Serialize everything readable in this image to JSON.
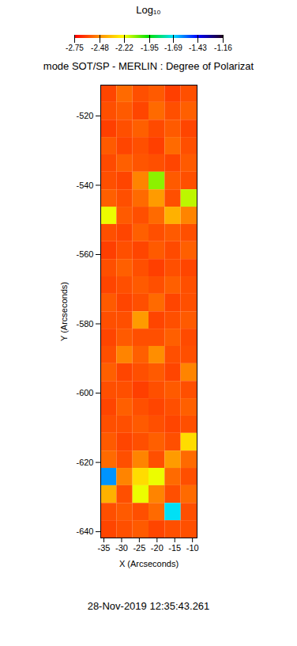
{
  "chart_data": {
    "type": "heatmap",
    "title": "mode SOT/SP - MERLIN : Degree of Polarizat",
    "x_label": "X (Arcseconds)",
    "y_label": "Y (Arcseconds)",
    "caption": "28-Nov-2019 12:35:43.261",
    "xlim": [
      -35.9,
      -8.7
    ],
    "xticks": [
      -35,
      -30,
      -25,
      -20,
      -15,
      -10
    ],
    "ylim": [
      -641.8,
      -511.1
    ],
    "yticks": [
      -520,
      -540,
      -560,
      -580,
      -600,
      -620,
      -640
    ],
    "cells": {
      "x_edges": [
        -35.9,
        -31.37,
        -26.83,
        -22.3,
        -17.77,
        -13.23,
        -8.7
      ],
      "y_edges": [
        -511.1,
        -516.1,
        -521.2,
        -526.2,
        -531.2,
        -536.2,
        -541.3,
        -546.3,
        -551.3,
        -556.3,
        -561.4,
        -566.4,
        -571.4,
        -576.5,
        -581.5,
        -586.5,
        -591.5,
        -596.6,
        -601.6,
        -606.6,
        -611.6,
        -616.7,
        -621.7,
        -626.7,
        -631.8,
        -636.8,
        -641.8
      ],
      "values": [
        [
          -2.62,
          -2.55,
          -2.6,
          -2.58,
          -2.63,
          -2.6
        ],
        [
          -2.6,
          -2.58,
          -2.62,
          -2.55,
          -2.6,
          -2.57
        ],
        [
          -2.63,
          -2.6,
          -2.57,
          -2.61,
          -2.58,
          -2.62
        ],
        [
          -2.58,
          -2.62,
          -2.6,
          -2.63,
          -2.55,
          -2.6
        ],
        [
          -2.61,
          -2.57,
          -2.59,
          -2.6,
          -2.62,
          -2.58
        ],
        [
          -2.6,
          -2.62,
          -2.5,
          -2.1,
          -2.58,
          -2.6
        ],
        [
          -2.57,
          -2.6,
          -2.55,
          -2.45,
          -2.6,
          -2.15
        ],
        [
          -2.2,
          -2.58,
          -2.6,
          -2.55,
          -2.4,
          -2.5
        ],
        [
          -2.6,
          -2.62,
          -2.57,
          -2.6,
          -2.58,
          -2.6
        ],
        [
          -2.63,
          -2.6,
          -2.62,
          -2.58,
          -2.61,
          -2.57
        ],
        [
          -2.6,
          -2.57,
          -2.6,
          -2.63,
          -2.6,
          -2.62
        ],
        [
          -2.62,
          -2.6,
          -2.58,
          -2.6,
          -2.57,
          -2.6
        ],
        [
          -2.58,
          -2.62,
          -2.6,
          -2.55,
          -2.62,
          -2.6
        ],
        [
          -2.6,
          -2.6,
          -2.45,
          -2.62,
          -2.6,
          -2.58
        ],
        [
          -2.62,
          -2.58,
          -2.6,
          -2.6,
          -2.57,
          -2.61
        ],
        [
          -2.6,
          -2.5,
          -2.57,
          -2.48,
          -2.6,
          -2.6
        ],
        [
          -2.57,
          -2.62,
          -2.6,
          -2.58,
          -2.62,
          -2.5
        ],
        [
          -2.6,
          -2.6,
          -2.63,
          -2.6,
          -2.58,
          -2.6
        ],
        [
          -2.62,
          -2.57,
          -2.6,
          -2.62,
          -2.6,
          -2.57
        ],
        [
          -2.6,
          -2.6,
          -2.58,
          -2.6,
          -2.62,
          -2.6
        ],
        [
          -2.58,
          -2.62,
          -2.6,
          -2.57,
          -2.6,
          -2.3
        ],
        [
          -2.55,
          -2.6,
          -2.5,
          -2.6,
          -2.45,
          -2.55
        ],
        [
          -1.6,
          -2.5,
          -2.3,
          -2.2,
          -2.55,
          -2.6
        ],
        [
          -2.4,
          -2.6,
          -2.2,
          -2.5,
          -2.6,
          -2.55
        ],
        [
          -2.6,
          -2.58,
          -2.6,
          -2.55,
          -1.7,
          -2.6
        ],
        [
          -2.62,
          -2.6,
          -2.58,
          -2.62,
          -2.6,
          -2.6
        ]
      ]
    },
    "colorbar": {
      "label": "Log₁₀",
      "range": [
        -2.75,
        -1.16
      ],
      "ticks": [
        -2.75,
        -2.48,
        -2.22,
        -1.95,
        -1.69,
        -1.43,
        -1.16
      ]
    }
  }
}
